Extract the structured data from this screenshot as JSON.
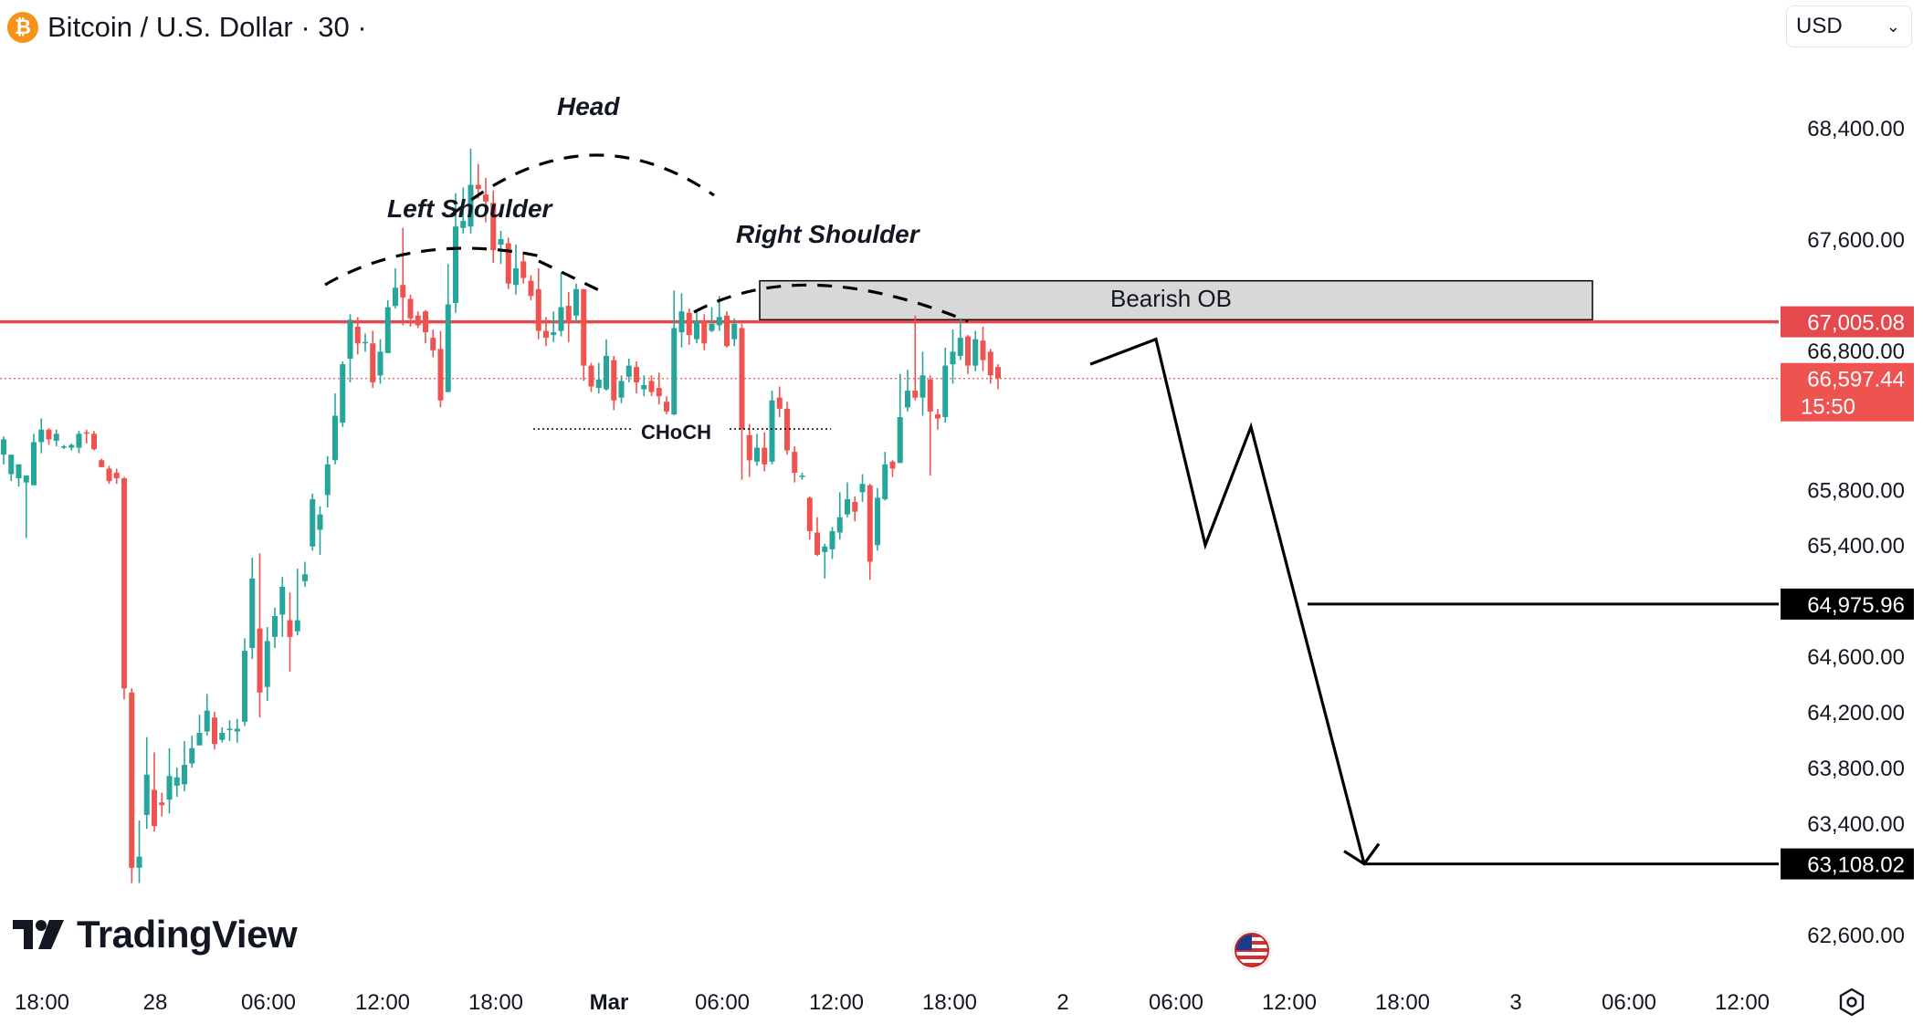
{
  "header": {
    "symbol_title": "Bitcoin / U.S. Dollar · 30 ·",
    "coin_icon": "bitcoin-icon",
    "currency": "USD"
  },
  "branding": {
    "logo_text": "TradingView"
  },
  "colors": {
    "up": "#26a69a",
    "down": "#ef5350",
    "resistance": "#e5484d",
    "ob_fill": "#d8d8d8",
    "label_dark": "#000000",
    "price_label_red": "#ef5350",
    "axis_text": "#131722"
  },
  "chart_data": {
    "type": "candlestick",
    "symbol": "BTCUSD",
    "interval": "30",
    "y_axis": {
      "range": [
        62400,
        68700
      ],
      "ticks": [
        "68,400.00",
        "67,600.00",
        "66,800.00",
        "65,800.00",
        "65,400.00",
        "64,600.00",
        "64,200.00",
        "63,800.00",
        "63,400.00",
        "62,600.00"
      ],
      "tick_values": [
        68400,
        67600,
        66800,
        65800,
        65400,
        64600,
        64200,
        63800,
        63400,
        62600
      ]
    },
    "x_axis": {
      "labels": [
        "18:00",
        "28",
        "06:00",
        "12:00",
        "18:00",
        "Mar",
        "06:00",
        "12:00",
        "18:00",
        "2",
        "06:00",
        "12:00",
        "18:00",
        "3",
        "06:00",
        "12:00"
      ],
      "bold_labels": [
        "Mar"
      ]
    },
    "candles": [
      [
        66050,
        66160,
        65980,
        66180
      ],
      [
        65910,
        66050,
        65860,
        66050
      ],
      [
        65880,
        65980,
        65820,
        65980
      ],
      [
        65850,
        65900,
        65450,
        65880
      ],
      [
        65830,
        66140,
        65830,
        66200
      ],
      [
        66140,
        66230,
        66060,
        66310
      ],
      [
        66230,
        66160,
        66120,
        66240
      ],
      [
        66150,
        66200,
        66110,
        66230
      ],
      [
        66110,
        66110,
        66090,
        66120
      ],
      [
        66100,
        66120,
        66080,
        66130
      ],
      [
        66100,
        66200,
        66060,
        66220
      ],
      [
        66210,
        66200,
        66130,
        66230
      ],
      [
        66200,
        66090,
        66080,
        66220
      ],
      [
        66010,
        65960,
        65960,
        66020
      ],
      [
        65950,
        65860,
        65840,
        65970
      ],
      [
        65920,
        65880,
        65840,
        65950
      ],
      [
        65880,
        64370,
        64290,
        65890
      ],
      [
        64340,
        63080,
        62970,
        64370
      ],
      [
        63080,
        63160,
        62970,
        63420
      ],
      [
        63460,
        63750,
        63360,
        64020
      ],
      [
        63640,
        63380,
        63340,
        63910
      ],
      [
        63550,
        63530,
        63450,
        63620
      ],
      [
        63570,
        63740,
        63470,
        63940
      ],
      [
        63670,
        63730,
        63590,
        63800
      ],
      [
        63680,
        63820,
        63630,
        63990
      ],
      [
        63830,
        63940,
        63800,
        64030
      ],
      [
        63960,
        64050,
        63960,
        64180
      ],
      [
        64060,
        64210,
        64030,
        64330
      ],
      [
        64160,
        63970,
        63930,
        64200
      ],
      [
        64000,
        64050,
        63980,
        64090
      ],
      [
        64070,
        64080,
        63990,
        64140
      ],
      [
        64060,
        64080,
        63980,
        64150
      ],
      [
        64130,
        64640,
        64100,
        64730
      ],
      [
        64660,
        65160,
        64580,
        65310
      ],
      [
        64800,
        64340,
        64160,
        65340
      ],
      [
        64380,
        64710,
        64280,
        64810
      ],
      [
        64740,
        64890,
        64660,
        64950
      ],
      [
        64900,
        65100,
        64740,
        65170
      ],
      [
        64860,
        64740,
        64490,
        65060
      ],
      [
        64780,
        64860,
        64750,
        65230
      ],
      [
        65140,
        65190,
        65100,
        65280
      ],
      [
        65390,
        65730,
        65360,
        65770
      ],
      [
        65510,
        65620,
        65330,
        65680
      ],
      [
        65760,
        65980,
        65670,
        66040
      ],
      [
        66010,
        66330,
        65980,
        66490
      ],
      [
        66280,
        66700,
        66250,
        66720
      ],
      [
        66740,
        67020,
        66570,
        67060
      ],
      [
        66970,
        66850,
        66770,
        67040
      ],
      [
        66860,
        66860,
        66790,
        66920
      ],
      [
        66850,
        66570,
        66530,
        66940
      ],
      [
        66620,
        66790,
        66560,
        66880
      ],
      [
        66780,
        67110,
        66780,
        67160
      ],
      [
        67120,
        67250,
        67100,
        67390
      ],
      [
        67270,
        67180,
        66980,
        67680
      ],
      [
        67170,
        67030,
        66970,
        67200
      ],
      [
        67050,
        66980,
        66960,
        67080
      ],
      [
        67080,
        66930,
        66850,
        67090
      ],
      [
        66890,
        66800,
        66750,
        66950
      ],
      [
        66810,
        66440,
        66390,
        66940
      ],
      [
        66500,
        67130,
        66500,
        67420
      ],
      [
        67140,
        67690,
        67070,
        67930
      ],
      [
        67680,
        67730,
        67640,
        67970
      ],
      [
        67690,
        67990,
        67640,
        68250
      ],
      [
        67990,
        67960,
        67890,
        68140
      ],
      [
        67920,
        67870,
        67720,
        68040
      ],
      [
        67860,
        67520,
        67430,
        67950
      ],
      [
        67560,
        67600,
        67420,
        67660
      ],
      [
        67570,
        67280,
        67240,
        67610
      ],
      [
        67270,
        67390,
        67200,
        67560
      ],
      [
        67440,
        67320,
        67280,
        67510
      ],
      [
        67300,
        67190,
        67160,
        67340
      ],
      [
        67240,
        66940,
        66880,
        67390
      ],
      [
        66940,
        66890,
        66830,
        67040
      ],
      [
        66910,
        66930,
        66860,
        67080
      ],
      [
        66940,
        67110,
        66900,
        67360
      ],
      [
        67120,
        67000,
        66860,
        67220
      ],
      [
        67050,
        67240,
        67000,
        67280
      ],
      [
        67240,
        66690,
        66580,
        67240
      ],
      [
        66690,
        66540,
        66500,
        66710
      ],
      [
        66530,
        66590,
        66490,
        66710
      ],
      [
        66520,
        66760,
        66510,
        66880
      ],
      [
        66730,
        66440,
        66370,
        66760
      ],
      [
        66460,
        66580,
        66420,
        66620
      ],
      [
        66610,
        66690,
        66570,
        66740
      ],
      [
        66680,
        66570,
        66490,
        66720
      ],
      [
        66520,
        66550,
        66470,
        66620
      ],
      [
        66580,
        66500,
        66470,
        66620
      ],
      [
        66530,
        66470,
        66410,
        66640
      ],
      [
        66430,
        66360,
        66340,
        66470
      ],
      [
        66340,
        66960,
        66330,
        67230
      ],
      [
        66930,
        67080,
        66820,
        67210
      ],
      [
        67070,
        66910,
        66840,
        67100
      ],
      [
        66880,
        67010,
        66850,
        67090
      ],
      [
        67010,
        66850,
        66800,
        67060
      ],
      [
        66940,
        66990,
        66930,
        67110
      ],
      [
        66980,
        67040,
        66940,
        67190
      ],
      [
        67050,
        66830,
        66820,
        67080
      ],
      [
        66880,
        66990,
        66830,
        67030
      ],
      [
        66960,
        66230,
        65870,
        66990
      ],
      [
        66190,
        66010,
        65890,
        66270
      ],
      [
        66000,
        66100,
        65970,
        66200
      ],
      [
        66100,
        65980,
        65930,
        66210
      ],
      [
        66000,
        66440,
        65980,
        66510
      ],
      [
        66460,
        66380,
        66320,
        66540
      ],
      [
        66380,
        66080,
        66050,
        66430
      ],
      [
        66070,
        65920,
        65850,
        66110
      ],
      [
        65900,
        65900,
        65870,
        65920
      ],
      [
        65740,
        65500,
        65440,
        65750
      ],
      [
        65490,
        65330,
        65320,
        65600
      ],
      [
        65350,
        65390,
        65160,
        65410
      ],
      [
        65370,
        65500,
        65300,
        65530
      ],
      [
        65490,
        65600,
        65440,
        65780
      ],
      [
        65620,
        65730,
        65600,
        65850
      ],
      [
        65710,
        65640,
        65570,
        65750
      ],
      [
        65780,
        65840,
        65710,
        65910
      ],
      [
        65830,
        65280,
        65150,
        65840
      ],
      [
        65400,
        65740,
        65360,
        65810
      ],
      [
        65730,
        65980,
        65720,
        66070
      ],
      [
        66000,
        65950,
        65890,
        66010
      ],
      [
        65990,
        66320,
        65990,
        66630
      ],
      [
        66390,
        66510,
        66360,
        66660
      ],
      [
        66510,
        66460,
        66440,
        67050
      ],
      [
        66460,
        66620,
        66330,
        66790
      ],
      [
        66590,
        66360,
        65900,
        66620
      ],
      [
        66340,
        66310,
        66230,
        66380
      ],
      [
        66320,
        66690,
        66280,
        66820
      ],
      [
        66700,
        66790,
        66560,
        66950
      ],
      [
        66760,
        66890,
        66730,
        67030
      ],
      [
        66900,
        66690,
        66630,
        66910
      ],
      [
        66690,
        66880,
        66650,
        66940
      ],
      [
        66870,
        66730,
        66650,
        66970
      ],
      [
        66790,
        66620,
        66560,
        66810
      ],
      [
        66680,
        66600,
        66520,
        66700
      ]
    ],
    "horizontal_lines": [
      {
        "price": 67005.08,
        "label": "67,005.08",
        "style": "solid-red",
        "full_width": true
      },
      {
        "price": 66597.44,
        "style": "dotted-red",
        "full_width": true
      },
      {
        "price": 64975.96,
        "label": "64,975.96",
        "style": "solid-black"
      },
      {
        "price": 63108.02,
        "label": "63,108.02",
        "style": "solid-black"
      }
    ],
    "price_labels": {
      "last_price": "66,597.44",
      "countdown": "15:50",
      "resistance": "67,005.08",
      "target_1": "64,975.96",
      "target_2": "63,108.02"
    },
    "annotations": {
      "head": "Head",
      "left_shoulder": "Left Shoulder",
      "right_shoulder": "Right Shoulder",
      "choch": "CHoCH",
      "bearish_ob": "Bearish OB"
    },
    "bearish_ob_zone": {
      "top": 67300,
      "bottom": 67020
    },
    "projection_path": [
      [
        66700,
        "now"
      ],
      [
        66880,
        "peak1"
      ],
      [
        65400,
        "low1"
      ],
      [
        66250,
        "peak2"
      ],
      [
        63108.02,
        "target"
      ]
    ]
  }
}
